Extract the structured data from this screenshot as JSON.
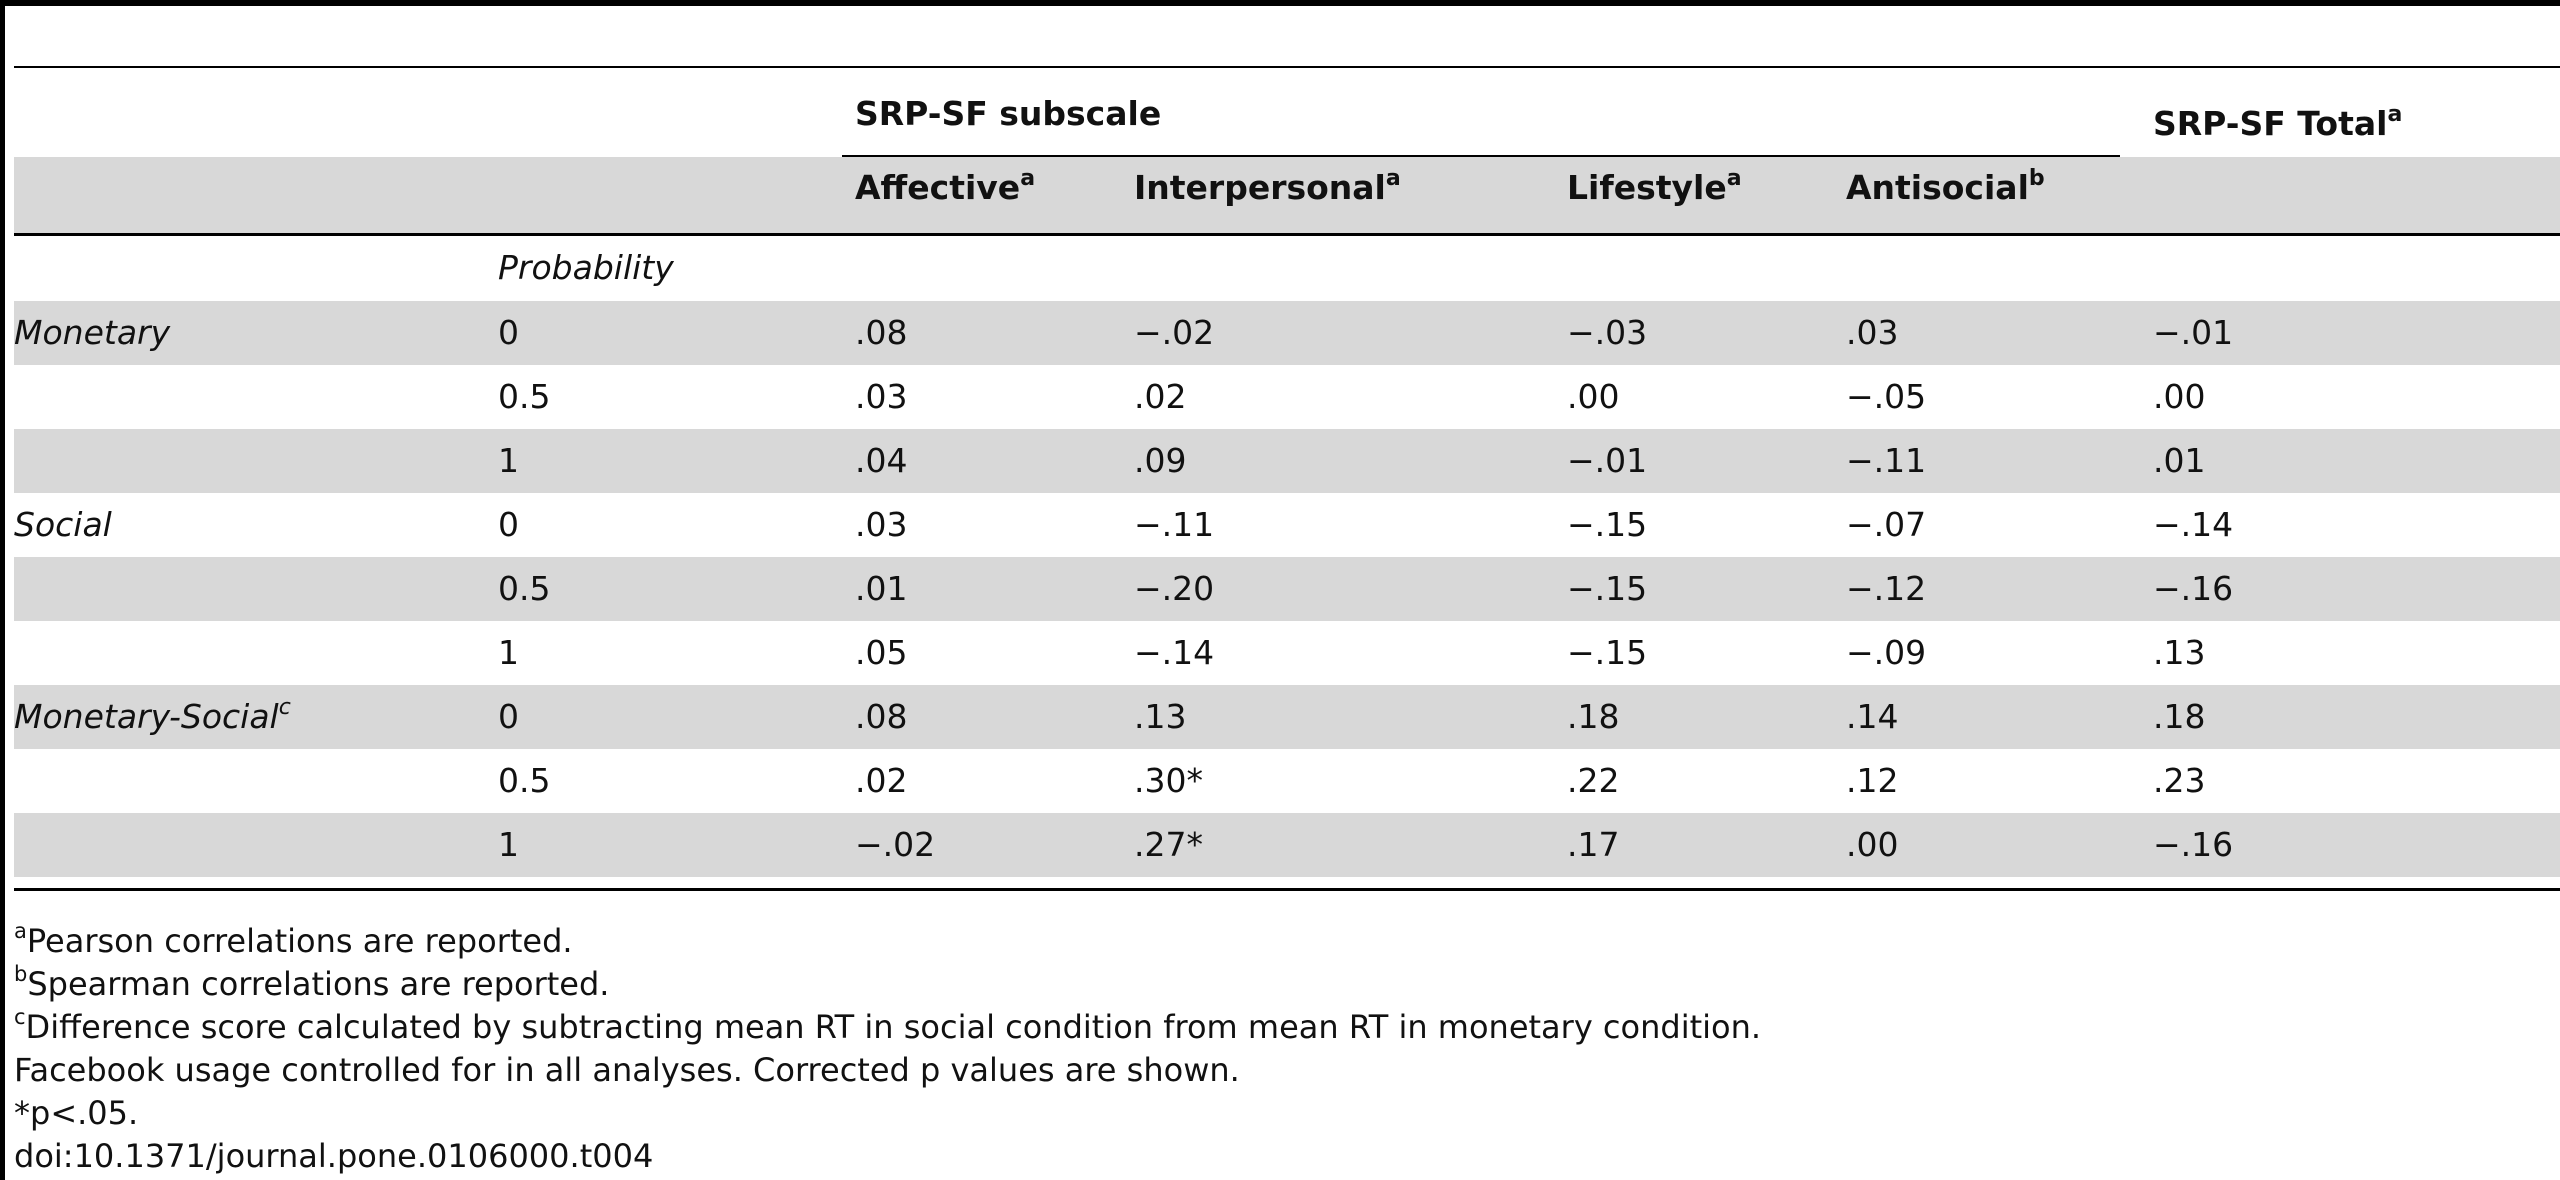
{
  "header": {
    "group_label": "SRP-SF subscale",
    "total_label": "SRP-SF Total",
    "total_sup": "a",
    "columns": [
      {
        "label": "Affective",
        "sup": "a"
      },
      {
        "label": "Interpersonal",
        "sup": "a"
      },
      {
        "label": "Lifestyle",
        "sup": "a"
      },
      {
        "label": "Antisocial",
        "sup": "b"
      }
    ],
    "probability_label": "Probability"
  },
  "rows": [
    {
      "condition": "Monetary",
      "condition_sup": "",
      "probability": "0",
      "values": [
        ".08",
        "−.02",
        "−.03",
        ".03",
        "−.01"
      ]
    },
    {
      "condition": "",
      "condition_sup": "",
      "probability": "0.5",
      "values": [
        ".03",
        ".02",
        ".00",
        "−.05",
        ".00"
      ]
    },
    {
      "condition": "",
      "condition_sup": "",
      "probability": "1",
      "values": [
        ".04",
        ".09",
        "−.01",
        "−.11",
        ".01"
      ]
    },
    {
      "condition": "Social",
      "condition_sup": "",
      "probability": "0",
      "values": [
        ".03",
        "−.11",
        "−.15",
        "−.07",
        "−.14"
      ]
    },
    {
      "condition": "",
      "condition_sup": "",
      "probability": "0.5",
      "values": [
        ".01",
        "−.20",
        "−.15",
        "−.12",
        "−.16"
      ]
    },
    {
      "condition": "",
      "condition_sup": "",
      "probability": "1",
      "values": [
        ".05",
        "−.14",
        "−.15",
        "−.09",
        ".13"
      ]
    },
    {
      "condition": "Monetary-Social",
      "condition_sup": "c",
      "probability": "0",
      "values": [
        ".08",
        ".13",
        ".18",
        ".14",
        ".18"
      ]
    },
    {
      "condition": "",
      "condition_sup": "",
      "probability": "0.5",
      "values": [
        ".02",
        ".30*",
        ".22",
        ".12",
        ".23"
      ]
    },
    {
      "condition": "",
      "condition_sup": "",
      "probability": "1",
      "values": [
        "−.02",
        ".27*",
        ".17",
        ".00",
        "−.16"
      ]
    }
  ],
  "footnotes": [
    {
      "sup": "a",
      "text": "Pearson correlations are reported."
    },
    {
      "sup": "b",
      "text": "Spearman correlations are reported."
    },
    {
      "sup": "c",
      "text": "Difference score calculated by subtracting mean RT in social condition from mean RT in monetary condition."
    },
    {
      "sup": "",
      "text": "Facebook usage controlled for in all analyses. Corrected p values are shown."
    },
    {
      "sup": "",
      "text": "*p<.05."
    },
    {
      "sup": "",
      "text": "doi:10.1371/journal.pone.0106000.t004"
    }
  ]
}
